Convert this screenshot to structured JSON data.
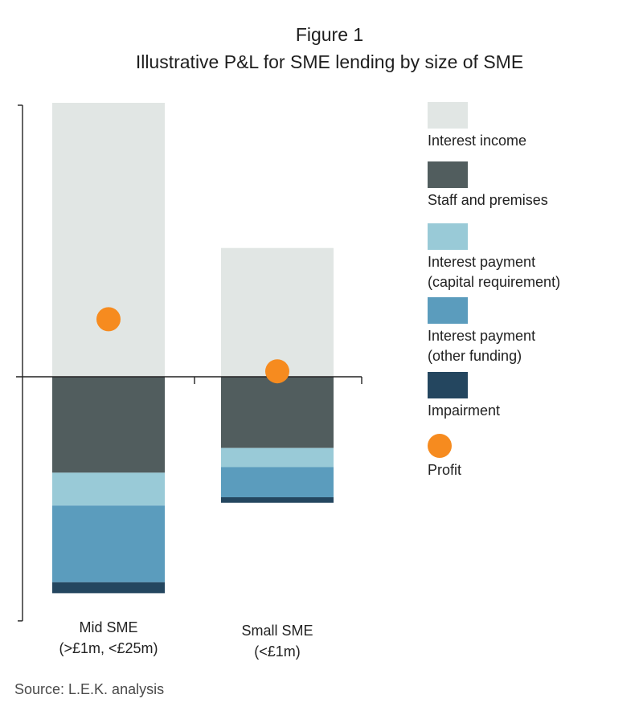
{
  "figure": {
    "label": "Figure 1",
    "title": "Illustrative P&L for SME lending by size of SME",
    "source": "Source: L.E.K. analysis"
  },
  "chart_data": {
    "type": "bar",
    "stacking": "diverging",
    "categories": [
      {
        "line1": "Mid SME",
        "line2": "(>£1m, <£25m)"
      },
      {
        "line1": "Small SME",
        "line2": "(<£1m)"
      }
    ],
    "series": [
      {
        "name": "Interest income",
        "color": "#e1e6e4",
        "values": [
          100,
          47
        ]
      },
      {
        "name": "Staff and premises",
        "color": "#515d5e",
        "values": [
          -35,
          -26
        ]
      },
      {
        "name": "Interest payment (capital requirement)",
        "color": "#99cad7",
        "values": [
          -12,
          -7
        ]
      },
      {
        "name": "Interest payment (other funding)",
        "color": "#5b9cbd",
        "values": [
          -28,
          -11
        ]
      },
      {
        "name": "Impairment",
        "color": "#24465f",
        "values": [
          -4,
          -2
        ]
      }
    ],
    "profit": {
      "name": "Profit",
      "color": "#f68b1f",
      "values": [
        21,
        2
      ]
    },
    "legend": [
      {
        "kind": "swatch",
        "color": "#e1e6e4",
        "lines": [
          "Interest income"
        ]
      },
      {
        "kind": "swatch",
        "color": "#515d5e",
        "lines": [
          "Staff and premises"
        ]
      },
      {
        "kind": "swatch",
        "color": "#99cad7",
        "lines": [
          "Interest payment",
          "(capital requirement)"
        ]
      },
      {
        "kind": "swatch",
        "color": "#5b9cbd",
        "lines": [
          "Interest payment",
          "(other funding)"
        ]
      },
      {
        "kind": "swatch",
        "color": "#24465f",
        "lines": [
          "Impairment"
        ]
      },
      {
        "kind": "dot",
        "color": "#f68b1f",
        "lines": [
          "Profit"
        ]
      }
    ],
    "legend_position": "right",
    "ylim": [
      -90,
      100
    ],
    "grid": false,
    "y_tick_labels": false
  }
}
